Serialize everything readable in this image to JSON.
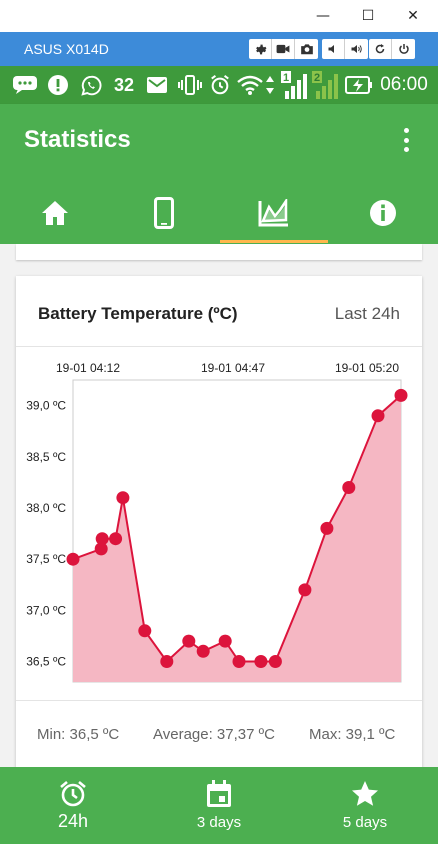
{
  "window": {
    "minimize": "—",
    "maximize": "☐",
    "close": "✕",
    "emulator_title": "ASUS X014D"
  },
  "status_bar": {
    "notification_count": "32",
    "time": "06:00",
    "sim1": "1",
    "sim2": "2"
  },
  "app_bar": {
    "title": "Statistics",
    "tabs": [
      "home",
      "device",
      "statistics",
      "info"
    ],
    "selected_tab": 2,
    "accent": "#ffb74d"
  },
  "card": {
    "title": "Battery Temperature (ºC)",
    "range": "Last 24h"
  },
  "chart_data": {
    "type": "area",
    "title": "Battery Temperature (ºC)",
    "x_ticks": [
      "19-01 04:12",
      "19-01 04:47",
      "19-01 05:20"
    ],
    "y_ticks": [
      "36,5 ºC",
      "37,0 ºC",
      "37,5 ºC",
      "38,0 ºC",
      "38,5 ºC",
      "39,0 ºC"
    ],
    "y_tick_values": [
      36.5,
      37.0,
      37.5,
      38.0,
      38.5,
      39.0
    ],
    "ylim": [
      36.3,
      39.25
    ],
    "series": [
      {
        "values": [
          37.5,
          37.6,
          37.7,
          37.7,
          38.1,
          36.8,
          36.5,
          36.7,
          36.6,
          36.7,
          36.5,
          36.5,
          36.5,
          37.2,
          37.8,
          38.2,
          38.9,
          39.1
        ],
        "color": "#dc143c",
        "fill": "#f5b7c3"
      }
    ]
  },
  "stats": {
    "min": "Min: 36,5 ºC",
    "average": "Average: 37,37 ºC",
    "max": "Max: 39,1 ºC"
  },
  "bottom_nav": {
    "items": [
      {
        "label": "24h",
        "icon": "alarm-clock-icon"
      },
      {
        "label": "3 days",
        "icon": "calendar-icon"
      },
      {
        "label": "5 days",
        "icon": "star-icon"
      }
    ],
    "selected": 0
  }
}
